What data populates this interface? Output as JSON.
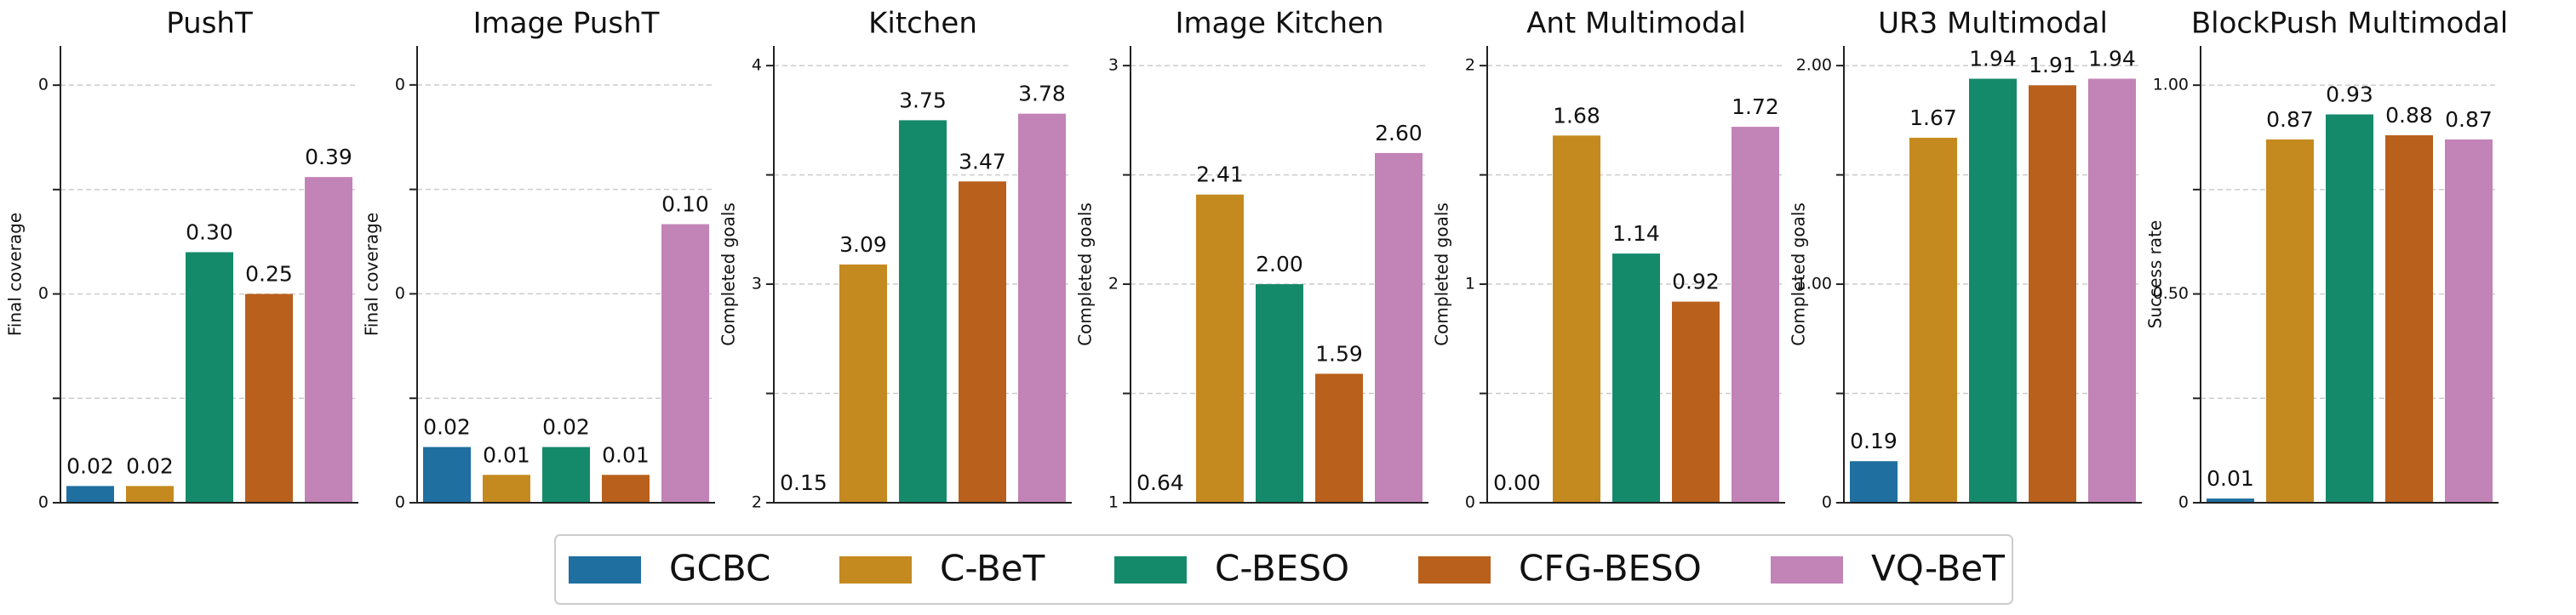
{
  "legend": {
    "names": [
      "GCBC",
      "C-BeT",
      "C-BESO",
      "CFG-BESO",
      "VQ-BeT"
    ],
    "colors": [
      "#1f6fa0",
      "#c58a1f",
      "#148a6b",
      "#b9601c",
      "#c283b7"
    ]
  },
  "chart_data": [
    {
      "type": "bar",
      "title": "PushT",
      "y_label": "Final coverage",
      "values": [
        0.02,
        0.02,
        0.3,
        0.25,
        0.39
      ],
      "value_labels": [
        "0.02",
        "0.02",
        "0.30",
        "0.25",
        "0.39"
      ],
      "ylim": [
        0,
        0.547
      ],
      "yticks": [
        0,
        {
          "value": 0.25,
          "label": "0"
        },
        {
          "value": 0.5,
          "label": "0"
        }
      ],
      "yminorticks": [
        0.125,
        0.375
      ],
      "grid": true
    },
    {
      "type": "bar",
      "title": "Image PushT",
      "y_label": "Final coverage",
      "values": [
        0.02,
        0.01,
        0.02,
        0.01,
        0.1
      ],
      "value_labels": [
        "0.02",
        "0.01",
        "0.02",
        "0.01",
        "0.10"
      ],
      "ylim": [
        0,
        0.164
      ],
      "yticks": [
        0,
        {
          "value": 0.075,
          "label": "0"
        },
        {
          "value": 0.15,
          "label": "0"
        }
      ],
      "yminorticks": [
        0.0375,
        0.1125
      ],
      "grid": true
    },
    {
      "type": "bar",
      "title": "Kitchen",
      "y_label": "Completed goals",
      "values": [
        0.15,
        3.09,
        3.75,
        3.47,
        3.78
      ],
      "value_labels": [
        "0.15",
        "3.09",
        "3.75",
        "3.47",
        "3.78"
      ],
      "ylim": [
        2,
        4.09
      ],
      "yticks": [
        2,
        3,
        4
      ],
      "yminorticks": [
        2.5,
        3.5
      ],
      "grid": true
    },
    {
      "type": "bar",
      "title": "Image Kitchen",
      "y_label": "Completed goals",
      "values": [
        0.64,
        2.41,
        2.0,
        1.59,
        2.6
      ],
      "value_labels": [
        "0.64",
        "2.41",
        "2.00",
        "1.59",
        "2.60"
      ],
      "ylim": [
        1,
        3.09
      ],
      "yticks": [
        1,
        2,
        3
      ],
      "yminorticks": [
        1.5,
        2.5
      ],
      "grid": true
    },
    {
      "type": "bar",
      "title": "Ant Multimodal",
      "y_label": "Completed goals",
      "values": [
        0.0,
        1.68,
        1.14,
        0.92,
        1.72
      ],
      "value_labels": [
        "0.00",
        "1.68",
        "1.14",
        "0.92",
        "1.72"
      ],
      "ylim": [
        0,
        2.09
      ],
      "yticks": [
        0,
        1,
        2
      ],
      "yminorticks": [
        0.5,
        1.5
      ],
      "grid": true
    },
    {
      "type": "bar",
      "title": "UR3 Multimodal",
      "y_label": "Completed goals",
      "values": [
        0.19,
        1.67,
        1.94,
        1.91,
        1.94
      ],
      "value_labels": [
        "0.19",
        "1.67",
        "1.94",
        "1.91",
        "1.94"
      ],
      "ylim": [
        0,
        2.09
      ],
      "yticks": [
        0,
        {
          "value": 1,
          "label": "1.00"
        },
        {
          "value": 2,
          "label": "2.00"
        }
      ],
      "yminorticks": [
        0.5,
        1.5
      ],
      "grid": true
    },
    {
      "type": "bar",
      "title": "BlockPush Multimodal",
      "y_label": "Success rate",
      "values": [
        0.01,
        0.87,
        0.93,
        0.88,
        0.87
      ],
      "value_labels": [
        "0.01",
        "0.87",
        "0.93",
        "0.88",
        "0.87"
      ],
      "ylim": [
        0,
        1.094
      ],
      "yticks": [
        0,
        {
          "value": 0.5,
          "label": "0.50"
        },
        {
          "value": 1,
          "label": "1.00"
        }
      ],
      "yminorticks": [
        0.25,
        0.75
      ],
      "grid": true
    }
  ]
}
